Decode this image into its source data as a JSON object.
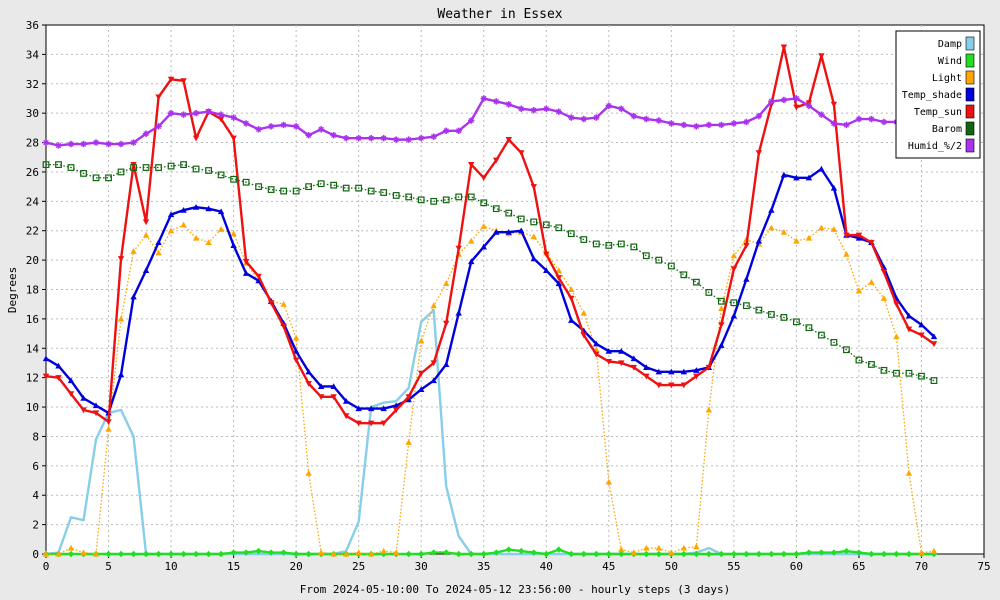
{
  "chart_data": {
    "type": "line",
    "title": "Weather in Essex",
    "xlabel": "From 2024-05-10:00 To 2024-05-12 23:56:00 - hourly steps (3 days)",
    "ylabel": "Degrees",
    "xlim": [
      0,
      75
    ],
    "ylim": [
      0,
      36
    ],
    "xticks": [
      0,
      5,
      10,
      15,
      20,
      25,
      30,
      35,
      40,
      45,
      50,
      55,
      60,
      65,
      70,
      75
    ],
    "yticks": [
      0,
      2,
      4,
      6,
      8,
      10,
      12,
      14,
      16,
      18,
      20,
      22,
      24,
      26,
      28,
      30,
      32,
      34,
      36
    ],
    "grid": true,
    "legend_position": "top-right",
    "x": [
      0,
      1,
      2,
      3,
      4,
      5,
      6,
      7,
      8,
      9,
      10,
      11,
      12,
      13,
      14,
      15,
      16,
      17,
      18,
      19,
      20,
      21,
      22,
      23,
      24,
      25,
      26,
      27,
      28,
      29,
      30,
      31,
      32,
      33,
      34,
      35,
      36,
      37,
      38,
      39,
      40,
      41,
      42,
      43,
      44,
      45,
      46,
      47,
      48,
      49,
      50,
      51,
      52,
      53,
      54,
      55,
      56,
      57,
      58,
      59,
      60,
      61,
      62,
      63,
      64,
      65,
      66,
      67,
      68,
      69,
      70,
      71
    ],
    "series": [
      {
        "name": "Damp",
        "color": "#87CEEB",
        "style": "solid",
        "marker": "none",
        "values": [
          0,
          0.1,
          2.5,
          2.3,
          7.8,
          9.6,
          9.8,
          8.0,
          0,
          0,
          0,
          0,
          0,
          0,
          0,
          0,
          0,
          0,
          0,
          0,
          0,
          0,
          0,
          0,
          0.2,
          2.2,
          10.0,
          10.3,
          10.4,
          11.3,
          15.8,
          16.6,
          4.6,
          1.2,
          0,
          0,
          0,
          0,
          0,
          0,
          0,
          0,
          0,
          0,
          0,
          0,
          0,
          0,
          0,
          0,
          0,
          0,
          0.1,
          0.4,
          0,
          0,
          0,
          0,
          0,
          0,
          0,
          0,
          0,
          0,
          0,
          0,
          0,
          0,
          0,
          0,
          0,
          0
        ]
      },
      {
        "name": "Wind",
        "color": "#22DD22",
        "style": "solid",
        "marker": "diamond",
        "values": [
          0,
          0,
          0,
          0,
          0,
          0,
          0,
          0,
          0,
          0,
          0,
          0,
          0,
          0,
          0,
          0.1,
          0.1,
          0.2,
          0.1,
          0.1,
          0,
          0,
          0,
          0,
          0,
          0,
          0,
          0,
          0,
          0,
          0,
          0.1,
          0.1,
          0,
          0,
          0,
          0.1,
          0.3,
          0.2,
          0.1,
          0,
          0.3,
          0,
          0,
          0,
          0,
          0,
          0,
          0,
          0,
          0,
          0,
          0,
          0,
          0,
          0,
          0,
          0,
          0,
          0,
          0,
          0.1,
          0.1,
          0.1,
          0.2,
          0.1,
          0,
          0,
          0,
          0,
          0,
          0
        ]
      },
      {
        "name": "Light",
        "color": "#FFA500",
        "style": "dotted",
        "marker": "triangle-up",
        "values": [
          0,
          0,
          0.4,
          0.1,
          0,
          8.5,
          16.0,
          20.6,
          21.7,
          20.5,
          22.0,
          22.4,
          21.5,
          21.2,
          22.1,
          21.8,
          19.8,
          18.6,
          17.2,
          17.0,
          14.7,
          5.5,
          0.1,
          0,
          0,
          0.1,
          0,
          0.2,
          0.1,
          7.6,
          14.5,
          16.9,
          18.4,
          20.4,
          21.3,
          22.3,
          22.0,
          21.8,
          21.9,
          21.6,
          20.5,
          19.3,
          18.0,
          16.4,
          13.9,
          4.9,
          0.3,
          0.1,
          0.4,
          0.4,
          0.1,
          0.4,
          0.5,
          9.8,
          16.7,
          20.3,
          21.4,
          21.1,
          22.2,
          21.9,
          21.3,
          21.5,
          22.2,
          22.1,
          20.4,
          17.9,
          18.5,
          17.4,
          14.8,
          5.5,
          0.1,
          0.2
        ]
      },
      {
        "name": "Temp_shade",
        "color": "#0000DD",
        "style": "solid",
        "marker": "triangle-up",
        "values": [
          13.3,
          12.8,
          11.8,
          10.6,
          10.1,
          9.6,
          12.2,
          17.5,
          19.3,
          21.2,
          23.1,
          23.4,
          23.6,
          23.5,
          23.3,
          21.0,
          19.1,
          18.6,
          17.2,
          15.7,
          13.8,
          12.4,
          11.4,
          11.4,
          10.4,
          9.9,
          9.9,
          9.9,
          10.1,
          10.5,
          11.2,
          11.8,
          12.9,
          16.4,
          19.9,
          20.9,
          21.9,
          21.9,
          22.0,
          20.1,
          19.3,
          18.4,
          15.9,
          15.2,
          14.3,
          13.8,
          13.8,
          13.3,
          12.7,
          12.4,
          12.4,
          12.4,
          12.5,
          12.7,
          14.2,
          16.2,
          18.7,
          21.3,
          23.4,
          25.8,
          25.6,
          25.6,
          26.2,
          24.9,
          21.7,
          21.5,
          21.2,
          19.5,
          17.4,
          16.2,
          15.6,
          14.8
        ]
      },
      {
        "name": "Temp_sun",
        "color": "#EE1111",
        "style": "solid",
        "marker": "triangle-down",
        "values": [
          12.1,
          12.0,
          10.9,
          9.8,
          9.6,
          9.0,
          20.1,
          26.5,
          22.6,
          31.1,
          32.3,
          32.2,
          28.3,
          30.1,
          29.6,
          28.3,
          19.9,
          18.9,
          17.1,
          15.5,
          13.2,
          11.6,
          10.7,
          10.7,
          9.4,
          8.9,
          8.9,
          8.9,
          9.8,
          10.7,
          12.3,
          13.0,
          15.7,
          20.8,
          26.5,
          25.6,
          26.8,
          28.2,
          27.3,
          25.0,
          20.4,
          18.8,
          17.4,
          14.9,
          13.6,
          13.1,
          13.0,
          12.7,
          12.1,
          11.5,
          11.5,
          11.5,
          12.1,
          12.7,
          15.6,
          19.4,
          21.0,
          27.3,
          30.6,
          34.5,
          30.4,
          30.7,
          33.9,
          30.6,
          21.7,
          21.7,
          21.2,
          19.2,
          17.0,
          15.3,
          14.9,
          14.3
        ]
      },
      {
        "name": "Barom",
        "color": "#116611",
        "style": "dotted",
        "marker": "square",
        "values": [
          26.5,
          26.5,
          26.3,
          25.9,
          25.6,
          25.6,
          26.0,
          26.3,
          26.3,
          26.3,
          26.4,
          26.5,
          26.2,
          26.1,
          25.8,
          25.5,
          25.3,
          25.0,
          24.8,
          24.7,
          24.7,
          25.0,
          25.2,
          25.1,
          24.9,
          24.9,
          24.7,
          24.6,
          24.4,
          24.3,
          24.1,
          24.0,
          24.1,
          24.3,
          24.3,
          23.9,
          23.5,
          23.2,
          22.8,
          22.6,
          22.4,
          22.2,
          21.8,
          21.4,
          21.1,
          21.0,
          21.1,
          20.9,
          20.3,
          20.0,
          19.6,
          19.0,
          18.5,
          17.8,
          17.2,
          17.1,
          16.9,
          16.6,
          16.3,
          16.1,
          15.8,
          15.4,
          14.9,
          14.4,
          13.9,
          13.2,
          12.9,
          12.5,
          12.3,
          12.3,
          12.1,
          11.8
        ]
      },
      {
        "name": "Humid_%/2",
        "color": "#AA33EE",
        "style": "solid",
        "marker": "star",
        "values": [
          28.0,
          27.8,
          27.9,
          27.9,
          28.0,
          27.9,
          27.9,
          28.0,
          28.6,
          29.1,
          30.0,
          29.9,
          30.0,
          30.1,
          29.9,
          29.7,
          29.3,
          28.9,
          29.1,
          29.2,
          29.1,
          28.5,
          28.9,
          28.5,
          28.3,
          28.3,
          28.3,
          28.3,
          28.2,
          28.2,
          28.3,
          28.4,
          28.8,
          28.8,
          29.5,
          31.0,
          30.8,
          30.6,
          30.3,
          30.2,
          30.3,
          30.1,
          29.7,
          29.6,
          29.7,
          30.5,
          30.3,
          29.8,
          29.6,
          29.5,
          29.3,
          29.2,
          29.1,
          29.2,
          29.2,
          29.3,
          29.4,
          29.8,
          30.8,
          30.9,
          31.0,
          30.5,
          29.9,
          29.3,
          29.2,
          29.6,
          29.6,
          29.4,
          29.4,
          29.5,
          29.6,
          29.5
        ]
      }
    ]
  }
}
